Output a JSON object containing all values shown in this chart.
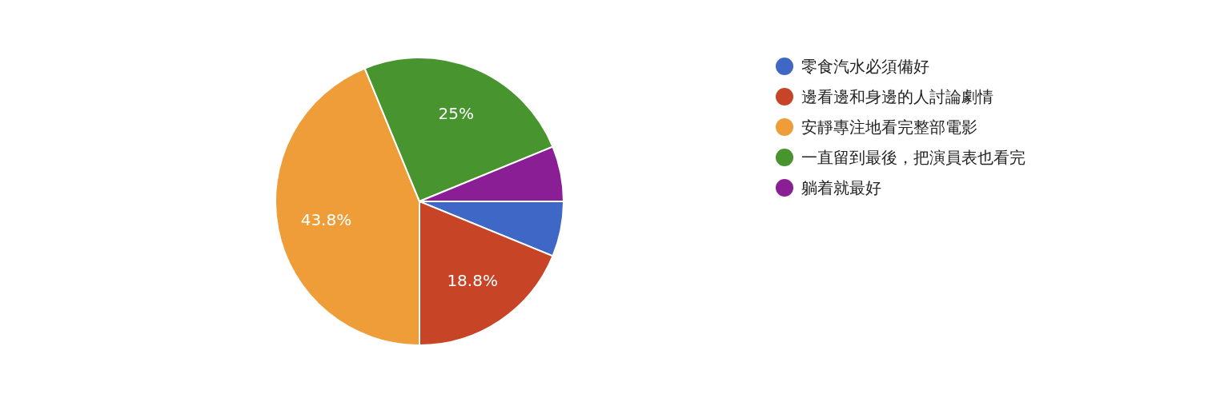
{
  "chart_data": {
    "type": "pie",
    "categories": [
      "零食汽水必須備好",
      "邊看邊和身邊的人討論劇情",
      "安靜專注地看完整部電影",
      "一直留到最後，把演員表也看完",
      "躺着就最好"
    ],
    "values": [
      6.2,
      18.8,
      43.8,
      25,
      6.2
    ],
    "colors": [
      "#3f67c6",
      "#c74426",
      "#ee9d38",
      "#48942f",
      "#8a1e95"
    ],
    "value_labels": [
      null,
      "18.8%",
      "43.8%",
      "25%",
      null
    ],
    "legend": "right"
  }
}
